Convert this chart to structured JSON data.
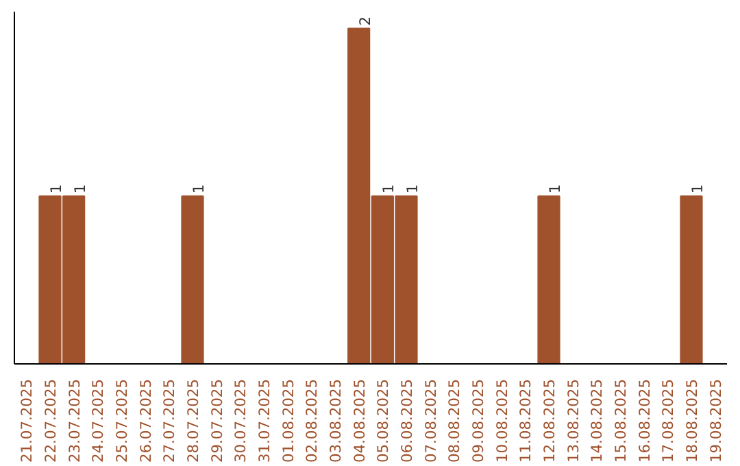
{
  "chart_data": {
    "type": "bar",
    "categories": [
      "21.07.2025",
      "22.07.2025",
      "23.07.2025",
      "24.07.2025",
      "25.07.2025",
      "26.07.2025",
      "27.07.2025",
      "28.07.2025",
      "29.07.2025",
      "30.07.2025",
      "31.07.2025",
      "01.08.2025",
      "02.08.2025",
      "03.08.2025",
      "04.08.2025",
      "05.08.2025",
      "06.08.2025",
      "07.08.2025",
      "08.08.2025",
      "09.08.2025",
      "10.08.2025",
      "11.08.2025",
      "12.08.2025",
      "13.08.2025",
      "14.08.2025",
      "15.08.2025",
      "16.08.2025",
      "17.08.2025",
      "18.08.2025",
      "19.08.2025"
    ],
    "values": [
      0,
      1,
      1,
      0,
      0,
      0,
      0,
      1,
      0,
      0,
      0,
      0,
      0,
      0,
      2,
      1,
      1,
      0,
      0,
      0,
      0,
      0,
      1,
      0,
      0,
      0,
      0,
      0,
      1,
      0
    ],
    "value_labels": [
      null,
      "1",
      "1",
      null,
      null,
      null,
      null,
      "1",
      null,
      null,
      null,
      null,
      null,
      null,
      "2",
      "1",
      "1",
      null,
      null,
      null,
      null,
      null,
      "1",
      null,
      null,
      null,
      null,
      null,
      "1",
      null
    ],
    "color": "#a0522d",
    "ylim": [
      0,
      2.1
    ],
    "tick_labels": "x"
  }
}
